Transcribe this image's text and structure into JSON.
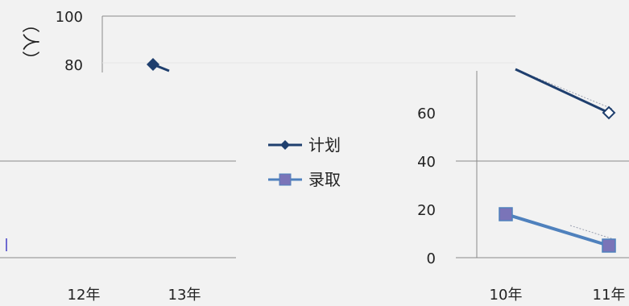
{
  "chart_data": {
    "type": "line",
    "ylabel": "（人）",
    "ylim": [
      0,
      100
    ],
    "yticks": [
      0,
      20,
      40,
      60,
      80,
      100
    ],
    "grid": true,
    "legend_placement": "center",
    "colors": {
      "plan": "#1f3f6e",
      "admit": "#4f81bd",
      "admit_marker": "#7a74b8",
      "background": "#f2f2f2"
    },
    "panels": [
      {
        "categories": [
          "12年",
          "13年"
        ],
        "series": [
          {
            "name": "计划",
            "values": [
              null,
              80
            ]
          }
        ]
      },
      {
        "categories": [
          "10年",
          "11年"
        ],
        "series": [
          {
            "name": "计划",
            "values": [
              null,
              60
            ]
          },
          {
            "name": "录取",
            "values": [
              18,
              5
            ]
          }
        ]
      }
    ]
  }
}
